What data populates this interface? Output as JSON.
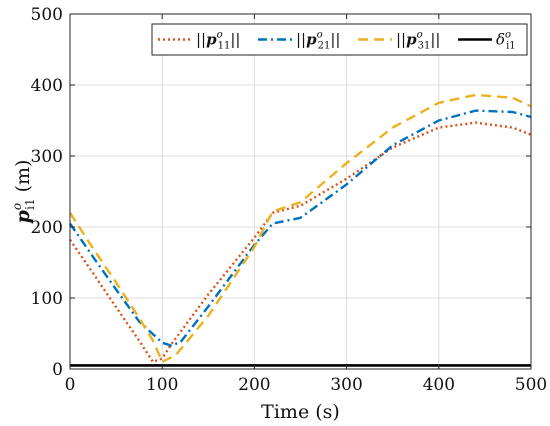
{
  "chart_data": {
    "type": "line",
    "xlabel": "Time (s)",
    "ylabel": "p",
    "ylabel_sup": "o",
    "ylabel_sub": "i1",
    "ylabel_unit": "(m)",
    "xlim": [
      0,
      500
    ],
    "ylim": [
      0,
      500
    ],
    "xticks": [
      0,
      100,
      200,
      300,
      400,
      500
    ],
    "yticks": [
      0,
      100,
      200,
      300,
      400,
      500
    ],
    "grid": true,
    "legend_position": "top-right",
    "series": [
      {
        "name": "||p11o||",
        "legend": {
          "pre": "||",
          "sym": "p",
          "sub": "11",
          "sup": "o",
          "post": "||"
        },
        "color": "#D95319",
        "style": "dotted",
        "x": [
          0,
          25,
          50,
          75,
          90,
          100,
          110,
          150,
          200,
          220,
          250,
          300,
          350,
          400,
          440,
          480,
          500
        ],
        "y": [
          182,
          135,
          87,
          40,
          10,
          15,
          35,
          105,
          185,
          220,
          230,
          268,
          312,
          340,
          347,
          340,
          330
        ]
      },
      {
        "name": "||p21o||",
        "legend": {
          "pre": "||",
          "sym": "p",
          "sub": "21",
          "sup": "o",
          "post": "||"
        },
        "color": "#0072BD",
        "style": "dashdot",
        "x": [
          0,
          25,
          50,
          75,
          100,
          110,
          120,
          150,
          200,
          220,
          250,
          300,
          350,
          400,
          440,
          480,
          500
        ],
        "y": [
          205,
          158,
          112,
          67,
          37,
          33,
          38,
          88,
          175,
          205,
          213,
          260,
          315,
          350,
          364,
          362,
          355
        ]
      },
      {
        "name": "||p31o||",
        "legend": {
          "pre": "||",
          "sym": "p",
          "sub": "31",
          "sup": "o",
          "post": "||"
        },
        "color": "#EDB120",
        "style": "dashed",
        "x": [
          0,
          25,
          50,
          75,
          90,
          100,
          115,
          150,
          200,
          220,
          250,
          300,
          350,
          400,
          440,
          480,
          500
        ],
        "y": [
          220,
          170,
          122,
          72,
          40,
          10,
          20,
          75,
          172,
          222,
          235,
          290,
          340,
          375,
          386,
          382,
          370
        ]
      },
      {
        "name": "δi1o",
        "legend": {
          "pre": "",
          "sym": "δ",
          "sub": "i1",
          "sup": "o",
          "post": ""
        },
        "color": "#000000",
        "style": "solid",
        "x": [
          0,
          500
        ],
        "y": [
          5,
          5
        ]
      }
    ]
  }
}
